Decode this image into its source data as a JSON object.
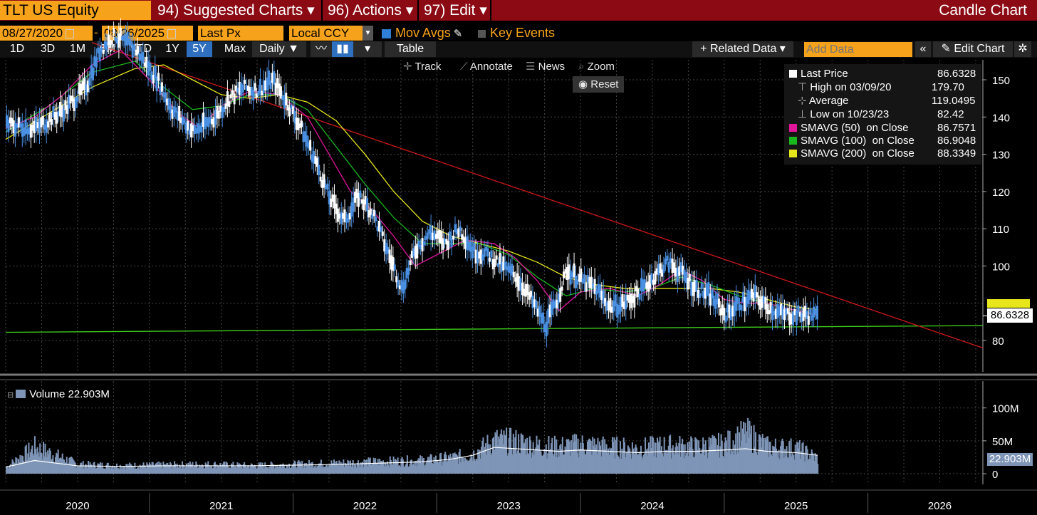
{
  "header": {
    "ticker": "TLT US Equity",
    "menu_suggested": "94) Suggested Charts ▾",
    "menu_actions": "96) Actions ▾",
    "menu_edit": "97) Edit ▾",
    "chart_kind": "Candle Chart"
  },
  "toolbar": {
    "start_date": "08/27/2020",
    "dash": "-",
    "end_date": "08/26/2025",
    "field": "Last Px",
    "currency": "Local CCY",
    "mov_avgs": "Mov Avgs",
    "key_events": "Key Events",
    "periods": [
      "1D",
      "3D",
      "1M",
      "6M",
      "YTD",
      "1Y",
      "5Y",
      "Max"
    ],
    "active_period": "5Y",
    "frequency": "Daily ▼",
    "table": "Table",
    "related_data": "+ Related Data ▾",
    "add_data_placeholder": "Add Data",
    "collapse": "«",
    "edit_chart": "Edit Chart",
    "track": "Track",
    "annotate": "Annotate",
    "news": "News",
    "zoom": "Zoom",
    "reset": "Reset"
  },
  "colors": {
    "price": "#4a90e2",
    "sma50": "#e0159c",
    "sma100": "#19b81e",
    "sma200": "#e6e61b",
    "trend_down": "#d01818",
    "trend_flat": "#3fcf1b",
    "volume": "#7e95b7",
    "accent": "#f7a21b"
  },
  "legend": {
    "last_price": {
      "label": "Last Price",
      "value": "86.6328"
    },
    "high": {
      "label": "High on 03/09/20",
      "value": "179.70"
    },
    "average": {
      "label": "Average",
      "value": "119.0495"
    },
    "low": {
      "label": "Low on 10/23/23",
      "value": "82.42"
    },
    "sma50": {
      "label": "SMAVG (50)  on Close",
      "value": "86.7571"
    },
    "sma100": {
      "label": "SMAVG (100)  on Close",
      "value": "86.9048"
    },
    "sma200": {
      "label": "SMAVG (200)  on Close",
      "value": "88.3349"
    }
  },
  "price_axis_tag": "86.6328",
  "volume_panel": {
    "legend": "Volume 22.903M",
    "axis_tag": "22.903M"
  },
  "chart_data": {
    "type": "line",
    "title": "",
    "price_ylim": [
      70,
      155
    ],
    "price_ticks": [
      "150",
      "140",
      "130",
      "120",
      "110",
      "100",
      "80"
    ],
    "volume_ticks": [
      "100M",
      "50M",
      "0"
    ],
    "volume_ylim": [
      0,
      130
    ],
    "x_labels": [
      "2020",
      "2021",
      "2022",
      "2023",
      "2024",
      "2025",
      "2026"
    ],
    "x_label_years": [
      2020.5,
      2021.5,
      2022.5,
      2023.5,
      2024.5,
      2025.5,
      2026.5
    ],
    "x_range": [
      2020.0,
      2026.8
    ],
    "series": [
      {
        "name": "Last Price",
        "x": [
          2020.0,
          2020.2,
          2020.4,
          2020.55,
          2020.65,
          2020.75,
          2020.9,
          2021.05,
          2021.15,
          2021.3,
          2021.45,
          2021.55,
          2021.65,
          2021.75,
          2021.85,
          2021.95,
          2022.05,
          2022.15,
          2022.25,
          2022.35,
          2022.45,
          2022.55,
          2022.65,
          2022.75,
          2022.85,
          2022.95,
          2023.05,
          2023.15,
          2023.25,
          2023.35,
          2023.45,
          2023.55,
          2023.65,
          2023.75,
          2023.82,
          2023.9,
          2024.0,
          2024.1,
          2024.2,
          2024.3,
          2024.4,
          2024.5,
          2024.6,
          2024.7,
          2024.8,
          2024.9,
          2025.0,
          2025.1,
          2025.2,
          2025.3,
          2025.4,
          2025.5,
          2025.65
        ],
        "values": [
          138,
          137,
          142,
          148,
          158,
          162,
          158,
          150,
          142,
          136,
          140,
          145,
          148,
          147,
          150,
          144,
          137,
          128,
          118,
          112,
          119,
          114,
          104,
          94,
          105,
          109,
          106,
          110,
          104,
          103,
          100,
          97,
          91,
          84,
          90,
          99,
          96,
          94,
          89,
          90,
          93,
          97,
          101,
          98,
          94,
          92,
          87,
          90,
          92,
          89,
          87,
          87,
          86.6
        ]
      },
      {
        "name": "SMAVG (50)",
        "x": [
          2020.0,
          2020.2,
          2020.4,
          2020.6,
          2020.8,
          2021.0,
          2021.2,
          2021.35,
          2021.5,
          2021.7,
          2021.9,
          2022.1,
          2022.25,
          2022.4,
          2022.55,
          2022.7,
          2022.85,
          2023.0,
          2023.2,
          2023.4,
          2023.55,
          2023.7,
          2023.85,
          2024.0,
          2024.2,
          2024.4,
          2024.55,
          2024.7,
          2024.85,
          2025.0,
          2025.15,
          2025.3,
          2025.5,
          2025.65
        ],
        "values": [
          137,
          140,
          146,
          154,
          158,
          150,
          141,
          137,
          143,
          147,
          146,
          140,
          130,
          120,
          115,
          108,
          100,
          103,
          107,
          106,
          102,
          96,
          88,
          93,
          94,
          92,
          95,
          99,
          96,
          91,
          90,
          90,
          88,
          86.76
        ]
      },
      {
        "name": "SMAVG (100)",
        "x": [
          2020.0,
          2020.3,
          2020.6,
          2020.9,
          2021.1,
          2021.3,
          2021.5,
          2021.7,
          2021.9,
          2022.1,
          2022.3,
          2022.5,
          2022.7,
          2022.9,
          2023.1,
          2023.3,
          2023.5,
          2023.7,
          2023.9,
          2024.1,
          2024.3,
          2024.5,
          2024.7,
          2024.9,
          2025.1,
          2025.3,
          2025.5,
          2025.65
        ],
        "values": [
          136,
          143,
          152,
          155,
          148,
          142,
          143,
          146,
          146,
          142,
          132,
          122,
          113,
          106,
          106,
          106,
          103,
          97,
          92,
          94,
          93,
          94,
          97,
          95,
          92,
          90,
          88,
          86.9
        ]
      },
      {
        "name": "SMAVG (200)",
        "x": [
          2020.0,
          2020.3,
          2020.6,
          2020.9,
          2021.1,
          2021.3,
          2021.5,
          2021.7,
          2021.9,
          2022.1,
          2022.3,
          2022.5,
          2022.7,
          2022.9,
          2023.1,
          2023.3,
          2023.5,
          2023.7,
          2023.9,
          2024.1,
          2024.3,
          2024.5,
          2024.7,
          2024.9,
          2025.1,
          2025.3,
          2025.5,
          2025.65
        ],
        "values": [
          134,
          141,
          148,
          153,
          154,
          150,
          146,
          145,
          146,
          144,
          139,
          130,
          120,
          112,
          108,
          106,
          104,
          101,
          97,
          95,
          94,
          94,
          94,
          94,
          93,
          91,
          89,
          88.33
        ]
      },
      {
        "name": "Downtrend",
        "x": [
          2020.6,
          2026.8
        ],
        "values": [
          160,
          78
        ]
      },
      {
        "name": "Support",
        "x": [
          2020.0,
          2026.8
        ],
        "values": [
          82.2,
          84.0
        ]
      }
    ],
    "volume": {
      "x": [
        2020.0,
        2020.2,
        2020.5,
        2020.8,
        2021.1,
        2021.4,
        2021.7,
        2022.0,
        2022.3,
        2022.6,
        2022.9,
        2023.1,
        2023.25,
        2023.4,
        2023.55,
        2023.7,
        2023.85,
        2024.0,
        2024.2,
        2024.4,
        2024.6,
        2024.8,
        2025.0,
        2025.15,
        2025.3,
        2025.5,
        2025.65
      ],
      "values": [
        10,
        40,
        14,
        12,
        13,
        14,
        12,
        14,
        16,
        18,
        20,
        24,
        30,
        50,
        48,
        42,
        40,
        44,
        40,
        38,
        42,
        40,
        44,
        60,
        40,
        38,
        22.9
      ],
      "avg": [
        10,
        20,
        12,
        11,
        12,
        12,
        12,
        13,
        14,
        16,
        18,
        22,
        28,
        40,
        38,
        36,
        34,
        36,
        34,
        32,
        34,
        34,
        36,
        38,
        34,
        32,
        28
      ]
    }
  }
}
